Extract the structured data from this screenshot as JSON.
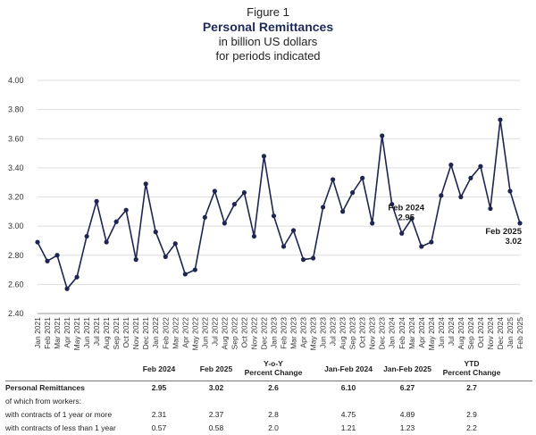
{
  "titles": {
    "figure": "Figure 1",
    "main": "Personal Remittances",
    "unit": "in billion US dollars",
    "period": "for periods indicated"
  },
  "chart_data": {
    "type": "line",
    "title": "Personal Remittances",
    "ylim": [
      2.4,
      4.0
    ],
    "yticks": [
      "2.40",
      "2.60",
      "2.80",
      "3.00",
      "3.20",
      "3.40",
      "3.60",
      "3.80",
      "4.00"
    ],
    "grid": "horizontal",
    "categories": [
      "Jan 2021",
      "Feb 2021",
      "Mar 2021",
      "Apr 2021",
      "May 2021",
      "Jun 2021",
      "Jul 2021",
      "Aug 2021",
      "Sep 2021",
      "Oct 2021",
      "Nov 2021",
      "Dec 2021",
      "Jan 2022",
      "Feb 2022",
      "Mar 2022",
      "Apr 2022",
      "May 2022",
      "Jun 2022",
      "Jul 2022",
      "Aug 2022",
      "Sep 2022",
      "Oct 2022",
      "Nov 2022",
      "Dec 2022",
      "Jan 2023",
      "Feb 2023",
      "Mar 2023",
      "Apr 2023",
      "May 2023",
      "Jun 2023",
      "Jul 2023",
      "Aug 2023",
      "Sep 2023",
      "Oct 2023",
      "Nov 2023",
      "Dec 2023",
      "Jan 2024",
      "Feb 2024",
      "Mar 2024",
      "Apr 2024",
      "May 2024",
      "Jun 2024",
      "Jul 2024",
      "Aug 2024",
      "Sep 2024",
      "Oct 2024",
      "Nov 2024",
      "Dec 2024",
      "Jan 2025",
      "Feb 2025"
    ],
    "series": [
      {
        "values": [
          2.89,
          2.76,
          2.8,
          2.57,
          2.65,
          2.93,
          3.17,
          2.89,
          3.03,
          3.11,
          2.77,
          3.29,
          2.96,
          2.79,
          2.88,
          2.67,
          2.7,
          3.06,
          3.24,
          3.02,
          3.15,
          3.23,
          2.93,
          3.48,
          3.07,
          2.86,
          2.97,
          2.77,
          2.78,
          3.13,
          3.32,
          3.1,
          3.23,
          3.33,
          3.02,
          3.62,
          3.15,
          2.95,
          3.05,
          2.86,
          2.89,
          3.21,
          3.42,
          3.2,
          3.33,
          3.41,
          3.12,
          3.73,
          3.24,
          3.02
        ]
      }
    ],
    "annotations": [
      {
        "category": "Feb 2024",
        "label": "Feb 2024",
        "value_text": "2.95"
      },
      {
        "category": "Feb 2025",
        "label": "Feb 2025",
        "value_text": "3.02"
      }
    ]
  },
  "table": {
    "headers": [
      "Feb 2024",
      "Feb 2025",
      "Y-o-Y\nPercent Change",
      "Jan-Feb 2024",
      "Jan-Feb 2025",
      "YTD\nPercent Change"
    ],
    "rows": [
      {
        "label": "Personal Remittances",
        "values": [
          "2.95",
          "3.02",
          "2.6",
          "6.10",
          "6.27",
          "2.7"
        ],
        "bold": true
      },
      {
        "label": "of which from workers:",
        "values": [
          "",
          "",
          "",
          "",
          "",
          ""
        ],
        "bold": false
      },
      {
        "label": "with contracts of 1 year or more",
        "values": [
          "2.31",
          "2.37",
          "2.8",
          "4.75",
          "4.89",
          "2.9"
        ],
        "bold": false
      },
      {
        "label": "with contracts of less than 1 year",
        "values": [
          "0.57",
          "0.58",
          "2.0",
          "1.21",
          "1.23",
          "2.2"
        ],
        "bold": false
      }
    ]
  },
  "colors": {
    "line": "#1e2550",
    "grid": "#dddddd",
    "title": "#1e2a5a"
  }
}
